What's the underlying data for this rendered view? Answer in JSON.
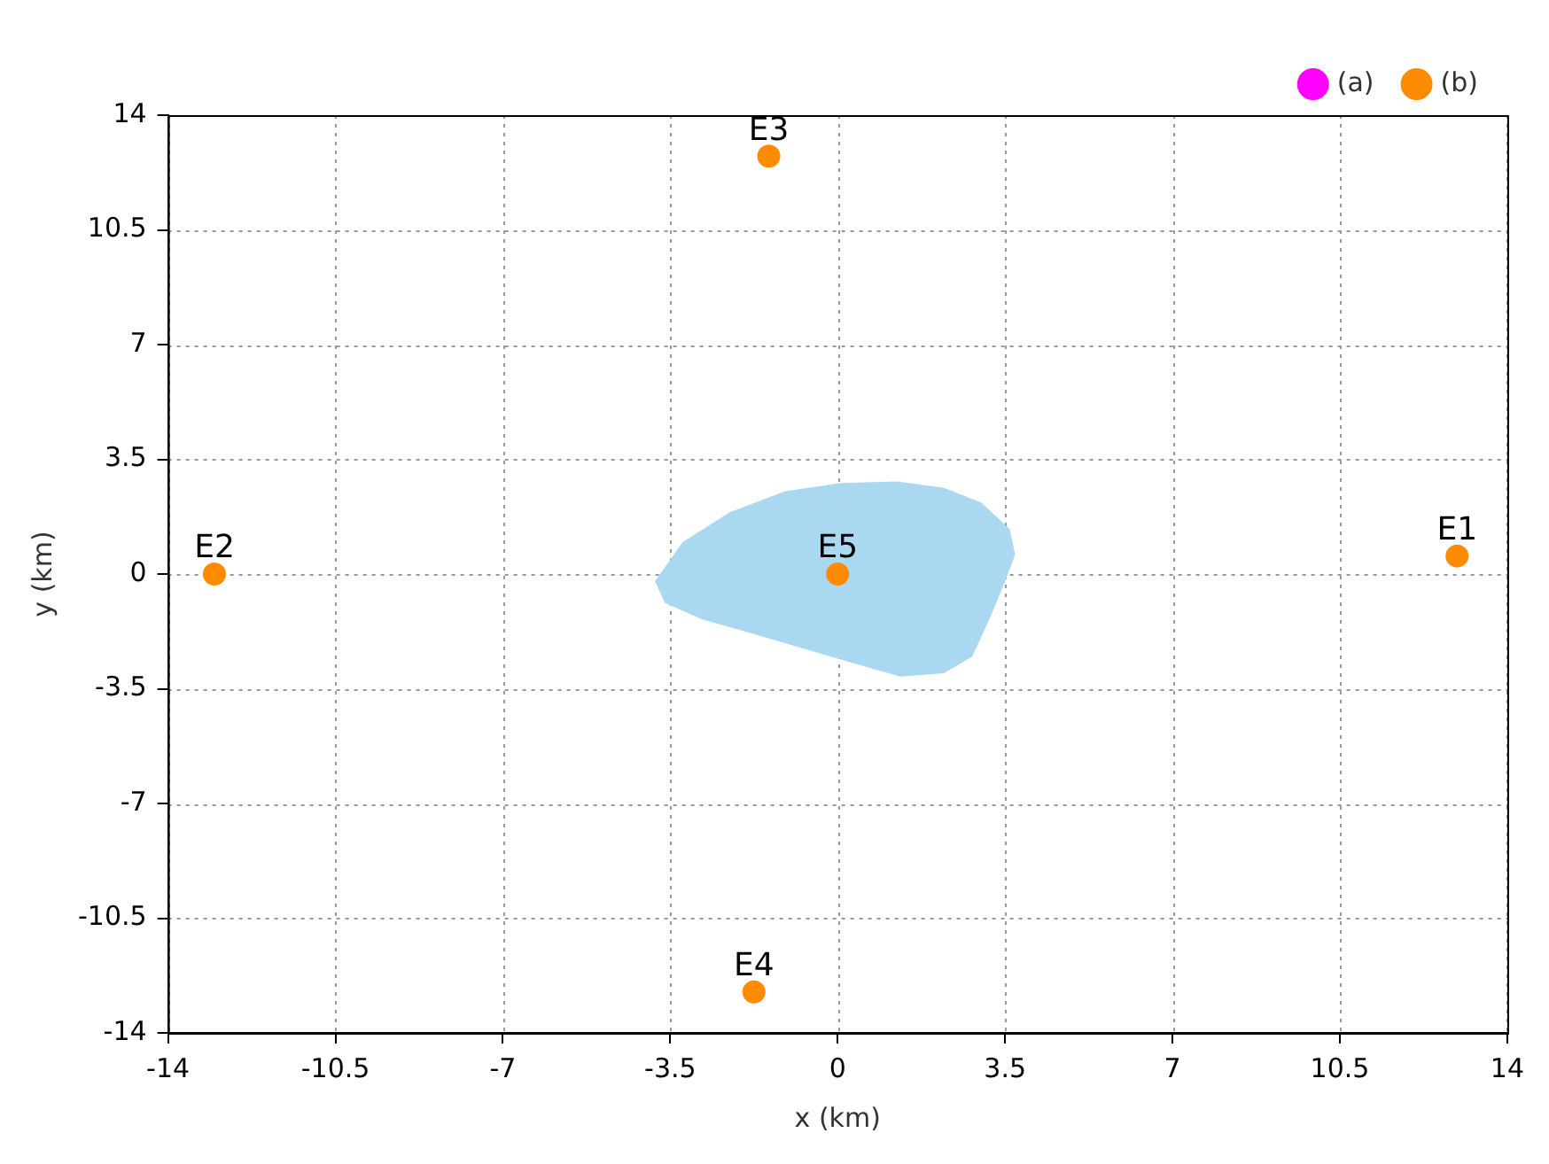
{
  "chart_data": {
    "type": "scatter",
    "xlabel": "x (km)",
    "ylabel": "y (km)",
    "xlim": [
      -14,
      14
    ],
    "ylim": [
      -14,
      14
    ],
    "xticks": [
      -14,
      -10.5,
      -7,
      -3.5,
      0,
      3.5,
      7,
      10.5,
      14
    ],
    "yticks": [
      -14,
      -10.5,
      -7,
      -3.5,
      0,
      3.5,
      7,
      10.5,
      14
    ],
    "grid": true,
    "legend": "top right",
    "marker": "circle",
    "series": [
      {
        "type": "area",
        "marker": "none",
        "color": "#aad8f0",
        "x": [
          -3.81,
          -3.23,
          -2.26,
          -1.09,
          0.08,
          1.24,
          2.22,
          3.0,
          3.58,
          3.69,
          3.5,
          3.19,
          2.8,
          2.22,
          1.32,
          0.47,
          -0.7,
          -1.87,
          -2.84,
          -3.62
        ],
        "values": [
          -0.25,
          0.95,
          1.85,
          2.5,
          2.75,
          2.8,
          2.6,
          2.15,
          1.35,
          0.6,
          -0.15,
          -1.25,
          -2.5,
          -3.0,
          -3.1,
          -2.75,
          -2.25,
          -1.75,
          -1.35,
          -0.85
        ]
      },
      {
        "name": "(a)",
        "color": "#ff00ff"
      },
      {
        "name": "(b)",
        "color": "#ff8c00",
        "x": [
          12.95,
          -13.03,
          -1.44,
          -1.75,
          0
        ],
        "values": [
          0.55,
          0,
          12.75,
          -12.75,
          0
        ],
        "value_labels": [
          "E1",
          "E2",
          "E3",
          "E4",
          "E5"
        ]
      }
    ]
  }
}
